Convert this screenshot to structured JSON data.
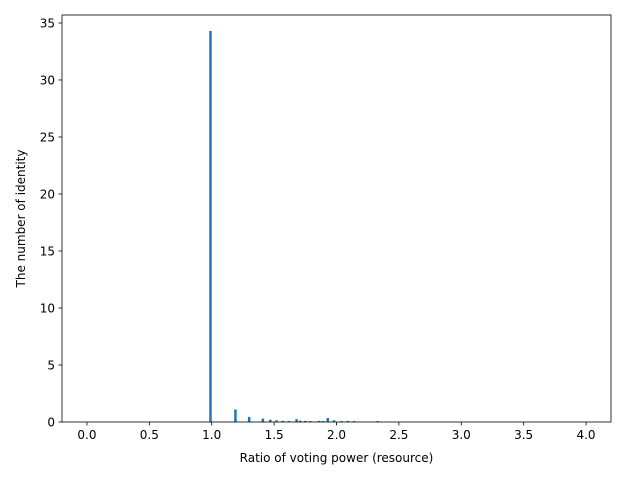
{
  "chart_data": {
    "type": "bar",
    "xlabel": "Ratio of voting power (resource)",
    "ylabel": "The number of identity",
    "xlim": [
      -0.2,
      4.2
    ],
    "ylim": [
      0,
      35.7
    ],
    "xticks": [
      "0.0",
      "0.5",
      "1.0",
      "1.5",
      "2.0",
      "2.5",
      "3.0",
      "3.5",
      "4.0"
    ],
    "yticks": [
      "0",
      "5",
      "10",
      "15",
      "20",
      "25",
      "30",
      "35"
    ],
    "grid": false,
    "bar_width": 0.02,
    "bar_color": "#1f77b4",
    "bars": [
      {
        "x": 0.99,
        "y": 34.3
      },
      {
        "x": 1.19,
        "y": 1.1
      },
      {
        "x": 1.3,
        "y": 0.45
      },
      {
        "x": 1.41,
        "y": 0.3
      },
      {
        "x": 1.47,
        "y": 0.2
      },
      {
        "x": 1.52,
        "y": 0.15
      },
      {
        "x": 1.57,
        "y": 0.1
      },
      {
        "x": 1.62,
        "y": 0.08
      },
      {
        "x": 1.68,
        "y": 0.25
      },
      {
        "x": 1.71,
        "y": 0.12
      },
      {
        "x": 1.75,
        "y": 0.1
      },
      {
        "x": 1.79,
        "y": 0.08
      },
      {
        "x": 1.86,
        "y": 0.1
      },
      {
        "x": 1.89,
        "y": 0.08
      },
      {
        "x": 1.93,
        "y": 0.35
      },
      {
        "x": 1.98,
        "y": 0.15
      },
      {
        "x": 2.04,
        "y": 0.08
      },
      {
        "x": 2.09,
        "y": 0.1
      },
      {
        "x": 2.14,
        "y": 0.08
      },
      {
        "x": 2.33,
        "y": 0.08
      }
    ]
  }
}
